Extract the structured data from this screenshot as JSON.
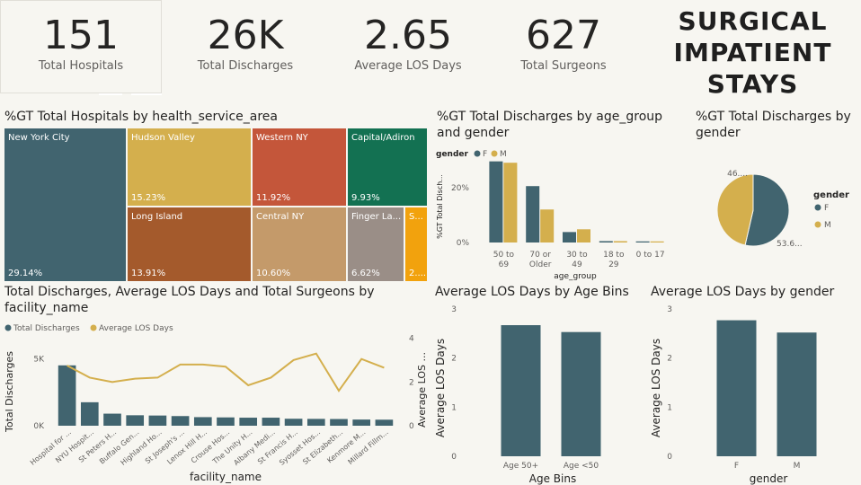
{
  "kpis": [
    {
      "value": "151",
      "label": "Total Hospitals"
    },
    {
      "value": "26K",
      "label": "Total Discharges"
    },
    {
      "value": "2.65",
      "label": "Average LOS Days"
    },
    {
      "value": "627",
      "label": "Total Surgeons"
    }
  ],
  "main_title": [
    "SURGICAL",
    "IMPATIENT",
    "STAYS"
  ],
  "colors": {
    "teal": "#41646f",
    "gold": "#d4af4d",
    "accent": "#252423"
  },
  "chart_data": [
    {
      "type": "treemap",
      "title": "%GT Total Hospitals by health_service_area",
      "items": [
        {
          "name": "New York City",
          "label": "29.14%",
          "color": "#41646f"
        },
        {
          "name": "Hudson Valley",
          "label": "15.23%",
          "color": "#d4af4d"
        },
        {
          "name": "Long Island",
          "label": "13.91%",
          "color": "#a45a2c"
        },
        {
          "name": "Western NY",
          "label": "11.92%",
          "color": "#c4563a"
        },
        {
          "name": "Central NY",
          "label": "10.60%",
          "color": "#c49a6a"
        },
        {
          "name": "Capital/Adiron",
          "label": "9.93%",
          "color": "#137152"
        },
        {
          "name": "Finger La...",
          "label": "6.62%",
          "color": "#9a8e87"
        },
        {
          "name": "S...",
          "label": "2....",
          "color": "#f2a20d"
        }
      ]
    },
    {
      "type": "bar",
      "title": "%GT Total Discharges by age_group and gender",
      "legend_title": "gender",
      "xlabel": "age_group",
      "ylabel": "%GT Total Disch...",
      "yticks": [
        "0%",
        "20%"
      ],
      "categories": [
        [
          "50 to",
          "69"
        ],
        [
          "70 or",
          "Older"
        ],
        [
          "30 to",
          "49"
        ],
        [
          "18 to",
          "29"
        ],
        [
          "0 to 17"
        ]
      ],
      "series": [
        {
          "name": "F",
          "values": [
            29.5,
            20.5,
            3.8,
            0.5,
            0.4
          ]
        },
        {
          "name": "M",
          "values": [
            29.0,
            12.0,
            4.8,
            0.5,
            0.4
          ]
        }
      ],
      "ylim": [
        0,
        32
      ]
    },
    {
      "type": "pie",
      "title": "%GT Total Discharges by gender",
      "legend_title": "gender",
      "slices": [
        {
          "name": "F",
          "value": 53.6,
          "label": "53.6..."
        },
        {
          "name": "M",
          "value": 46.4,
          "label": "46...."
        }
      ]
    },
    {
      "type": "combo",
      "title": "Total Discharges, Average LOS Days and Total Surgeons by facility_name",
      "xlabel": "facility_name",
      "ylabel_left": "Total Discharges",
      "ylabel_right": "Average LOS ...",
      "yticks_left": [
        "0K",
        "5K"
      ],
      "yticks_right": [
        "0",
        "2",
        "4"
      ],
      "categories": [
        "Hospital for ...",
        "NYU Hospit...",
        "St Peters H...",
        "Buffalo Gen...",
        "Highland Ho...",
        "St Joseph's ...",
        "Lenox Hill H...",
        "Crouse Hos...",
        "The Unity H...",
        "Albany Medi...",
        "St Francis H...",
        "Syosset Hos...",
        "St Elizabeth...",
        "Kenmore M...",
        "Millard Fillm..."
      ],
      "series": [
        {
          "name": "Total Discharges",
          "kind": "bar",
          "values": [
            4500,
            1750,
            900,
            780,
            760,
            720,
            640,
            620,
            600,
            600,
            520,
            510,
            500,
            460,
            450
          ]
        },
        {
          "name": "Average LOS Days",
          "kind": "line",
          "values": [
            2.75,
            2.2,
            2.0,
            2.15,
            2.2,
            2.8,
            2.8,
            2.7,
            1.85,
            2.2,
            3.0,
            3.3,
            1.6,
            3.05,
            2.65
          ]
        }
      ],
      "ylim_left": [
        0,
        7500
      ],
      "ylim_right": [
        0,
        4.6
      ]
    },
    {
      "type": "bar",
      "title": "Average LOS Days by Age Bins",
      "xlabel": "Age Bins",
      "ylabel": "Average LOS Days",
      "yticks": [
        "0",
        "1",
        "2",
        "3"
      ],
      "categories": [
        "Age 50+",
        "Age <50"
      ],
      "values": [
        2.67,
        2.53
      ],
      "ylim": [
        0,
        3
      ]
    },
    {
      "type": "bar",
      "title": "Average LOS Days by gender",
      "xlabel": "gender",
      "ylabel": "Average LOS Days",
      "yticks": [
        "0",
        "1",
        "2",
        "3"
      ],
      "categories": [
        "F",
        "M"
      ],
      "values": [
        2.77,
        2.52
      ],
      "ylim": [
        0,
        3
      ]
    }
  ]
}
